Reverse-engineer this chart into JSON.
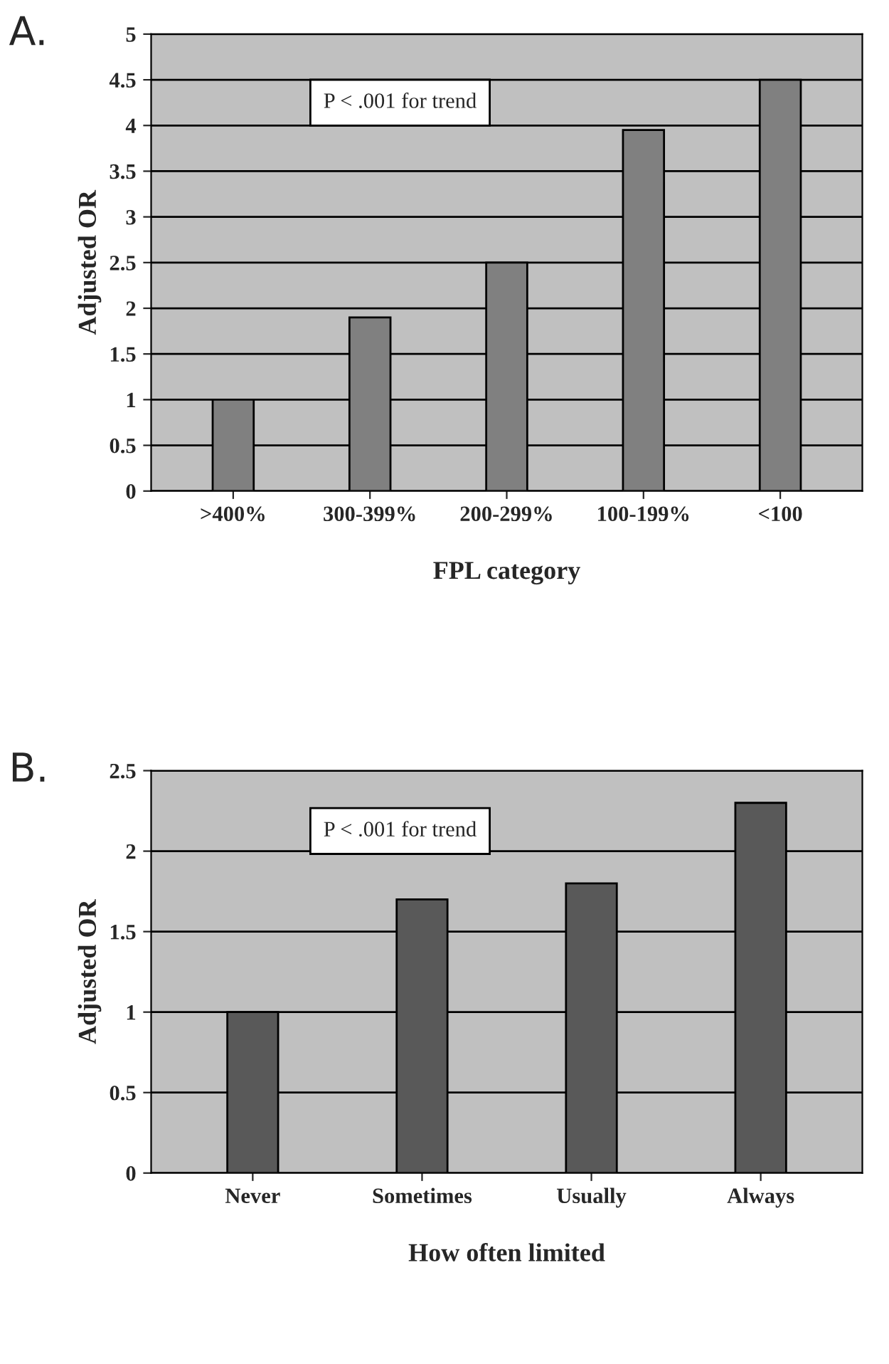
{
  "chart_data": [
    {
      "type": "bar",
      "title": "A.",
      "xlabel": "FPL category",
      "ylabel": "Adjusted OR",
      "categories": [
        ">400%",
        "300-399%",
        "200-299%",
        "100-199%",
        "<100"
      ],
      "series": [
        {
          "color": "#808080",
          "values": [
            1,
            1.9,
            2.5,
            3.95,
            4.5
          ]
        }
      ],
      "ylim": [
        0,
        5
      ],
      "yticks": [
        0,
        0.5,
        1,
        1.5,
        2,
        2.5,
        3,
        3.5,
        4,
        4.5,
        5
      ],
      "grid": "y",
      "annotations": [
        "P < .001 for trend"
      ]
    },
    {
      "type": "bar",
      "title": "B.",
      "xlabel": "How often limited",
      "ylabel": "Adjusted OR",
      "categories": [
        "Never",
        "Sometimes",
        "Usually",
        "Always"
      ],
      "series": [
        {
          "color": "#595959",
          "values": [
            1,
            1.7,
            1.8,
            2.3
          ]
        }
      ],
      "ylim": [
        0,
        2.5
      ],
      "yticks": [
        0,
        0.5,
        1,
        1.5,
        2,
        2.5
      ],
      "grid": "y",
      "annotations": [
        "P < .001 for trend"
      ]
    }
  ]
}
